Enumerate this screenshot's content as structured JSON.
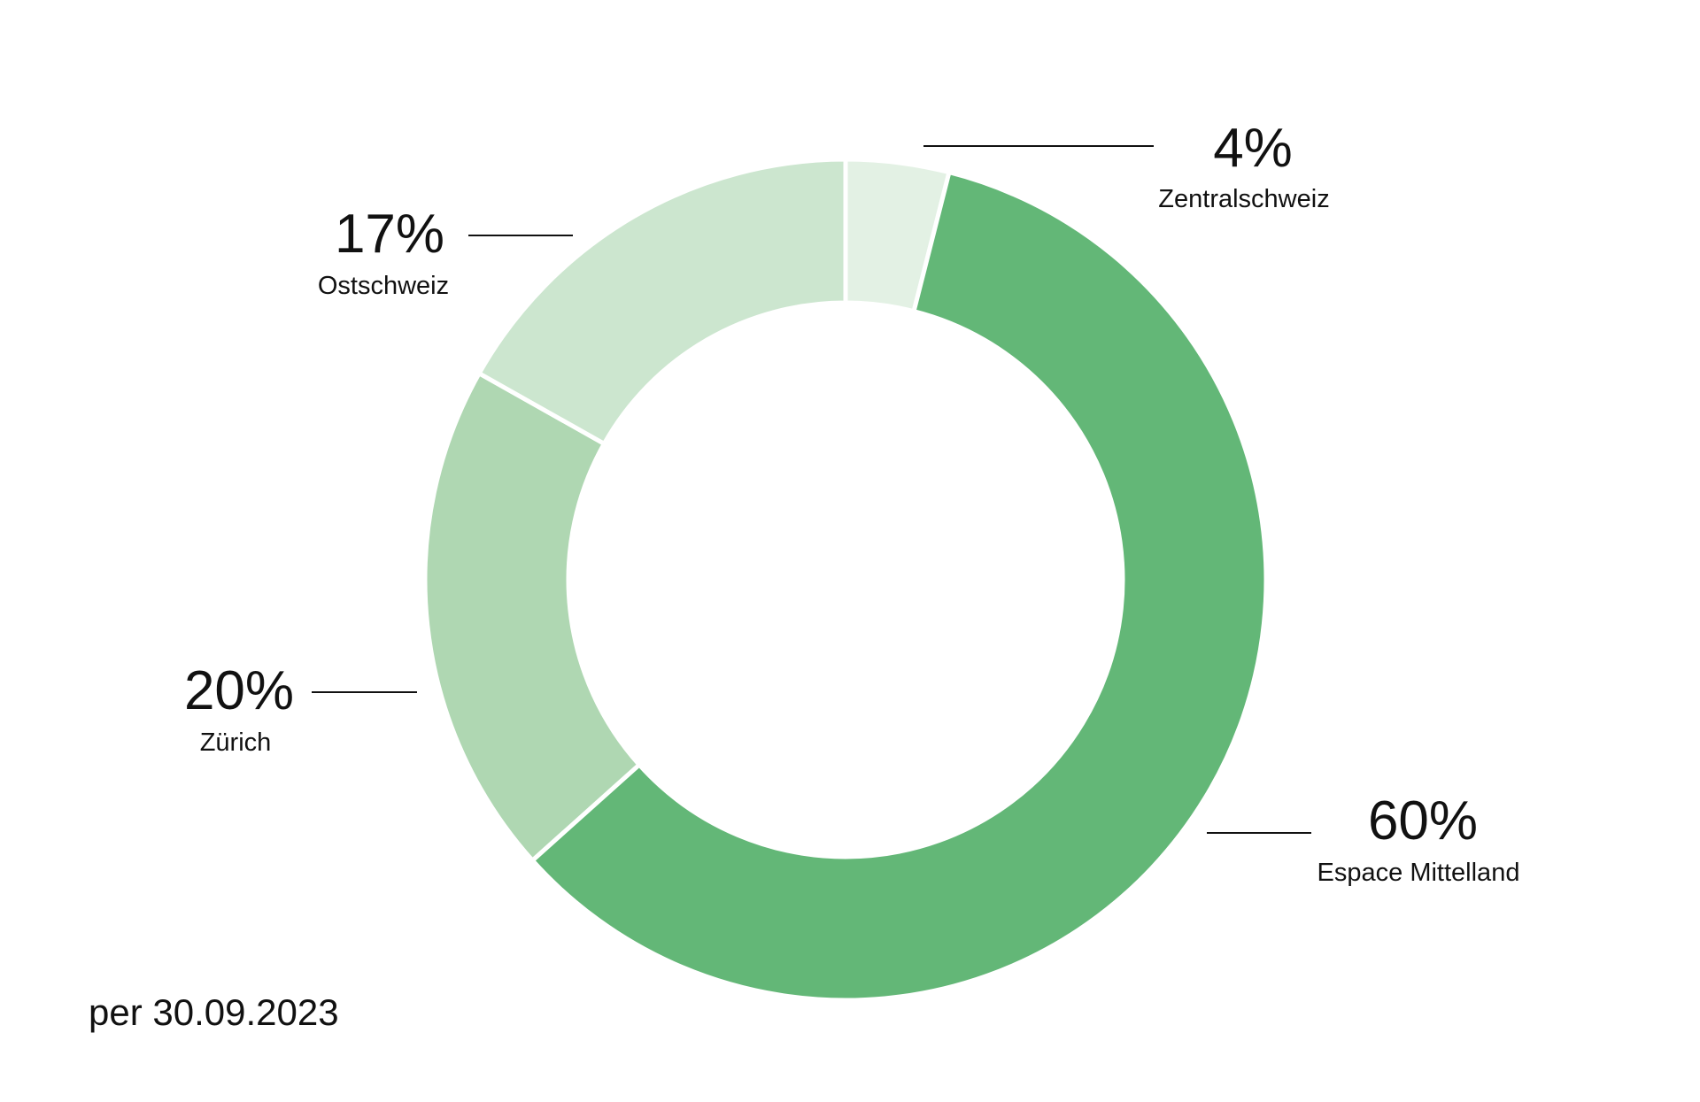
{
  "chart_data": {
    "type": "pie",
    "style": "donut",
    "slices": [
      {
        "label": "Zentralschweiz",
        "value": 4,
        "value_label": "4%",
        "color": "#e3f1e4"
      },
      {
        "label": "Espace Mittelland",
        "value": 60,
        "value_label": "60%",
        "color": "#63b777"
      },
      {
        "label": "Zürich",
        "value": 20,
        "value_label": "20%",
        "color": "#afd7b2"
      },
      {
        "label": "Ostschweiz",
        "value": 17,
        "value_label": "17%",
        "color": "#cce6cf"
      }
    ],
    "start_angle_deg": 0,
    "direction": "clockwise",
    "legend": "none",
    "label_position": "outside-with-leader-lines"
  },
  "footnote": "per 30.09.2023"
}
